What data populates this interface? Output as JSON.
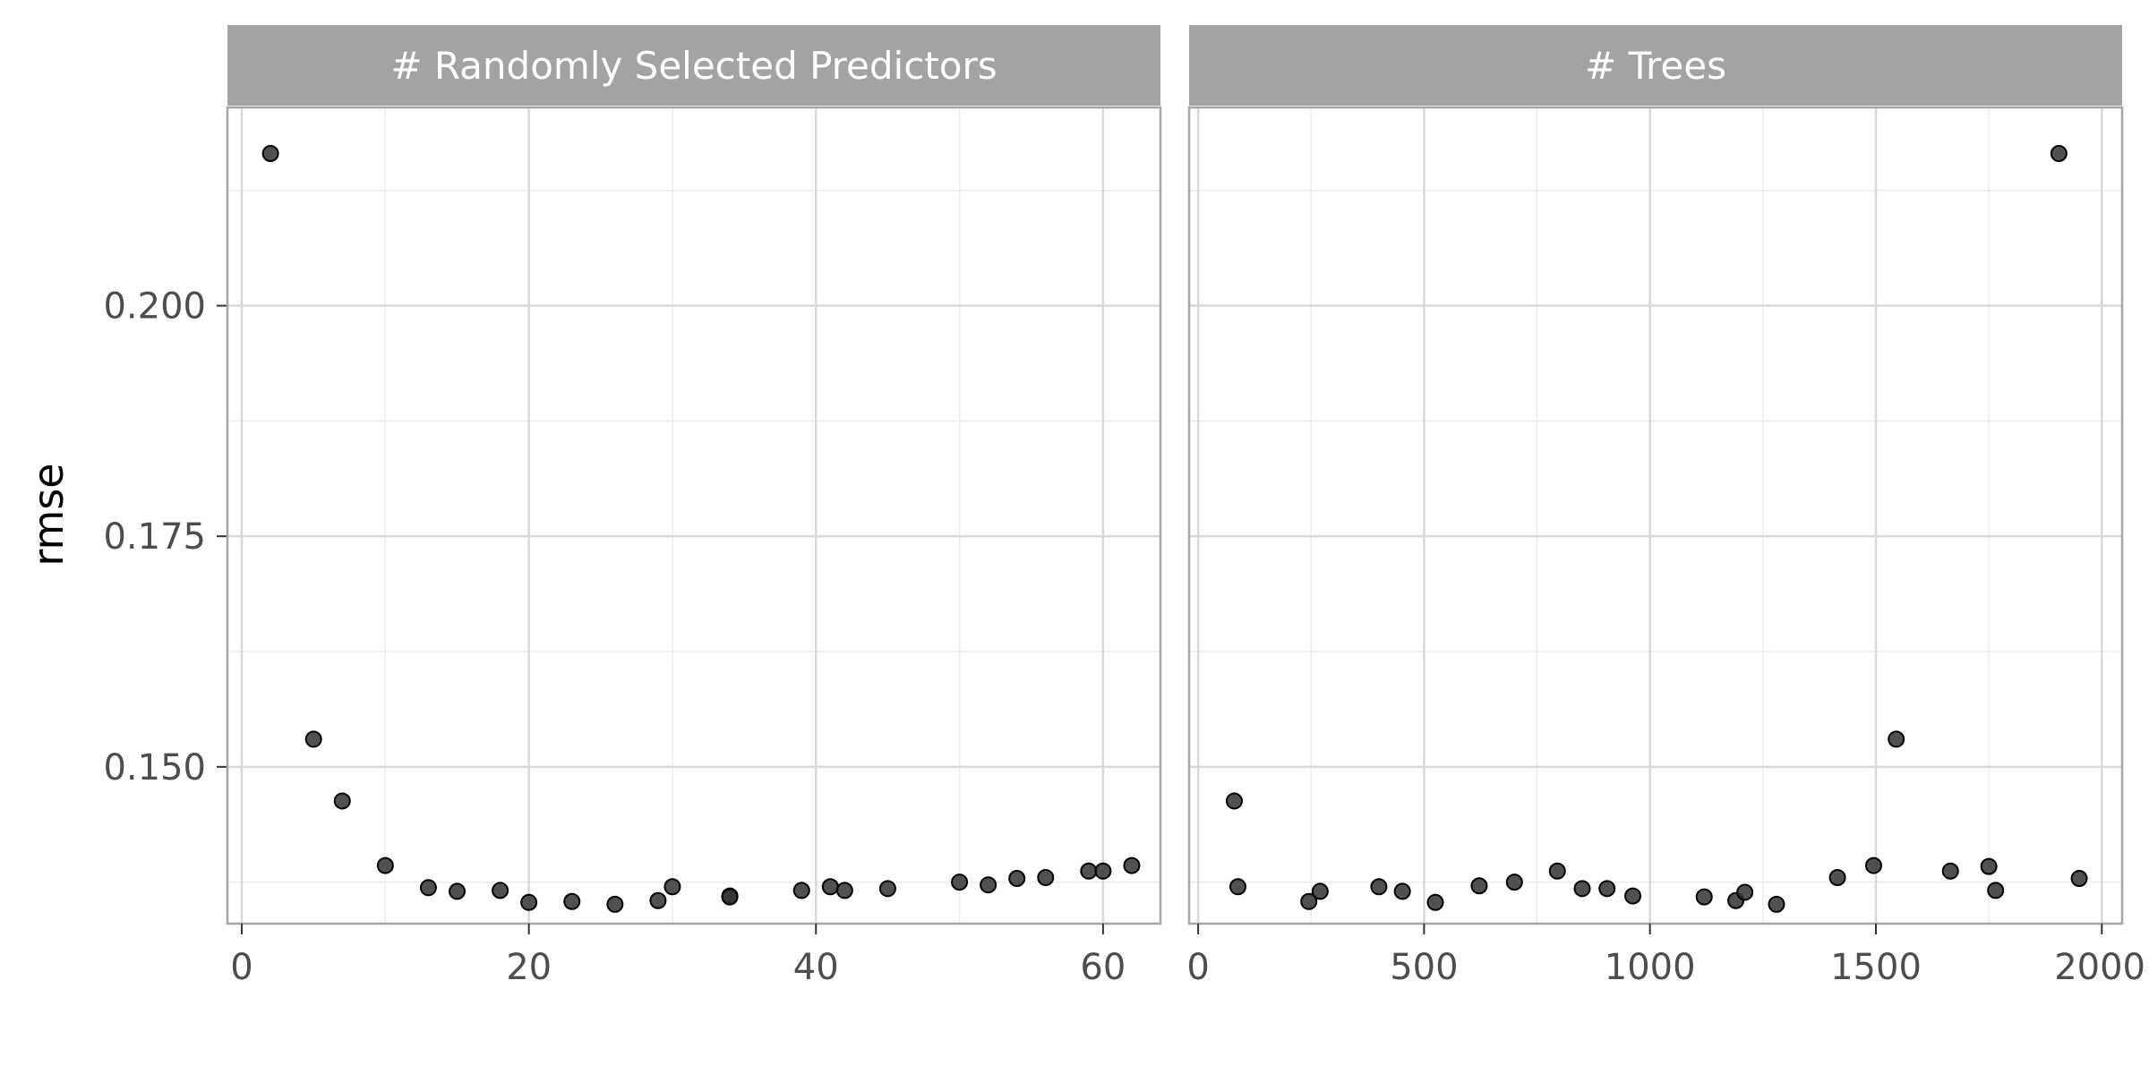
{
  "chart_data": {
    "type": "scatter",
    "ylabel": "rmse",
    "ylim": [
      0.133,
      0.2215
    ],
    "y_ticks": [
      "0.150",
      "0.175",
      "0.200"
    ],
    "y_tick_values": [
      0.15,
      0.175,
      0.2
    ],
    "y_minor_values": [
      0.1375,
      0.1625,
      0.1875,
      0.2125
    ],
    "grid": true,
    "panels": [
      {
        "name": "# Randomly Selected Predictors",
        "xlim": [
          -1,
          64
        ],
        "x_ticks": [
          "0",
          "20",
          "40",
          "60"
        ],
        "x_tick_values": [
          0,
          20,
          40,
          60
        ],
        "x_minor_values": [
          10,
          30,
          50
        ],
        "points": [
          {
            "x": 2,
            "y": 0.2165
          },
          {
            "x": 5,
            "y": 0.153
          },
          {
            "x": 7,
            "y": 0.1463
          },
          {
            "x": 10,
            "y": 0.1393
          },
          {
            "x": 13,
            "y": 0.1369
          },
          {
            "x": 15,
            "y": 0.1365
          },
          {
            "x": 18,
            "y": 0.1366
          },
          {
            "x": 20,
            "y": 0.1353
          },
          {
            "x": 23,
            "y": 0.1354
          },
          {
            "x": 26,
            "y": 0.1351
          },
          {
            "x": 29,
            "y": 0.1355
          },
          {
            "x": 30,
            "y": 0.137
          },
          {
            "x": 34,
            "y": 0.136
          },
          {
            "x": 34,
            "y": 0.1359
          },
          {
            "x": 39,
            "y": 0.1366
          },
          {
            "x": 41,
            "y": 0.137
          },
          {
            "x": 42,
            "y": 0.1366
          },
          {
            "x": 45,
            "y": 0.1368
          },
          {
            "x": 50,
            "y": 0.1375
          },
          {
            "x": 52,
            "y": 0.1372
          },
          {
            "x": 54,
            "y": 0.1379
          },
          {
            "x": 56,
            "y": 0.138
          },
          {
            "x": 59,
            "y": 0.1387
          },
          {
            "x": 60,
            "y": 0.1387
          },
          {
            "x": 62,
            "y": 0.1393
          }
        ]
      },
      {
        "name": "# Trees",
        "xlim": [
          -20,
          2045
        ],
        "x_ticks": [
          "0",
          "500",
          "1000",
          "1500",
          "2000"
        ],
        "x_tick_values": [
          0,
          500,
          1000,
          1500,
          2000
        ],
        "x_minor_values": [
          250,
          750,
          1250,
          1750
        ],
        "points": [
          {
            "x": 80,
            "y": 0.1463
          },
          {
            "x": 88,
            "y": 0.137
          },
          {
            "x": 245,
            "y": 0.1354
          },
          {
            "x": 270,
            "y": 0.1365
          },
          {
            "x": 400,
            "y": 0.137
          },
          {
            "x": 452,
            "y": 0.1365
          },
          {
            "x": 525,
            "y": 0.1353
          },
          {
            "x": 622,
            "y": 0.1371
          },
          {
            "x": 700,
            "y": 0.1375
          },
          {
            "x": 795,
            "y": 0.1387
          },
          {
            "x": 850,
            "y": 0.1368
          },
          {
            "x": 905,
            "y": 0.1368
          },
          {
            "x": 962,
            "y": 0.136
          },
          {
            "x": 1120,
            "y": 0.1359
          },
          {
            "x": 1190,
            "y": 0.1355
          },
          {
            "x": 1210,
            "y": 0.1364
          },
          {
            "x": 1280,
            "y": 0.1351
          },
          {
            "x": 1415,
            "y": 0.138
          },
          {
            "x": 1495,
            "y": 0.1393
          },
          {
            "x": 1545,
            "y": 0.153
          },
          {
            "x": 1665,
            "y": 0.1387
          },
          {
            "x": 1750,
            "y": 0.1392
          },
          {
            "x": 1765,
            "y": 0.1366
          },
          {
            "x": 1905,
            "y": 0.2165
          },
          {
            "x": 1950,
            "y": 0.1379
          }
        ]
      }
    ]
  },
  "style": {
    "panel_border_color": "#a6a6a6",
    "strip_fill_color": "#a3a3a3",
    "major_grid_color": "#d9d9d9",
    "minor_grid_color": "#ececec",
    "point_fill_color": "#333333",
    "point_stroke_color": "#000000"
  }
}
